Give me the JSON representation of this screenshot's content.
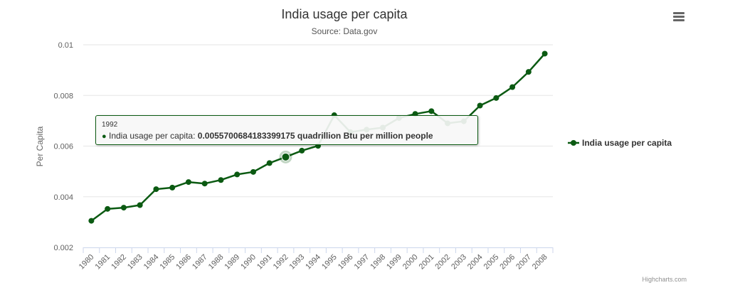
{
  "chart_data": {
    "type": "line",
    "title": "India usage per capita",
    "subtitle": "Source: Data.gov",
    "xlabel": "",
    "ylabel": "Per Capita",
    "categories": [
      "1980",
      "1981",
      "1982",
      "1983",
      "1984",
      "1985",
      "1986",
      "1987",
      "1988",
      "1989",
      "1990",
      "1991",
      "1992",
      "1993",
      "1994",
      "1995",
      "1996",
      "1997",
      "1998",
      "1999",
      "2000",
      "2001",
      "2002",
      "2003",
      "2004",
      "2005",
      "2006",
      "2007",
      "2008"
    ],
    "series": [
      {
        "name": "India usage per capita",
        "color": "#0b5a12",
        "values": [
          0.00305,
          0.00352,
          0.00357,
          0.00367,
          0.0043,
          0.00436,
          0.00458,
          0.00452,
          0.00466,
          0.00488,
          0.00498,
          0.00533,
          0.0055700684183399175,
          0.00582,
          0.00601,
          0.00722,
          0.00655,
          0.00665,
          0.00673,
          0.00711,
          0.00727,
          0.00738,
          0.0069,
          0.00698,
          0.0076,
          0.0079,
          0.00833,
          0.00893,
          0.00965
        ]
      }
    ],
    "ylim": [
      0.002,
      0.01
    ],
    "yticks": [
      0.002,
      0.004,
      0.006,
      0.008,
      0.01
    ],
    "ytick_labels": [
      "0.002",
      "0.004",
      "0.006",
      "0.008",
      "0.01"
    ],
    "grid": true,
    "legend_position": "right",
    "tooltip": {
      "header": "1992",
      "series_label": "India usage per capita:",
      "value_text": "0.0055700684183399175 quadrillion Btu per million people",
      "category_index": 12
    },
    "credits": "Highcharts.com"
  }
}
